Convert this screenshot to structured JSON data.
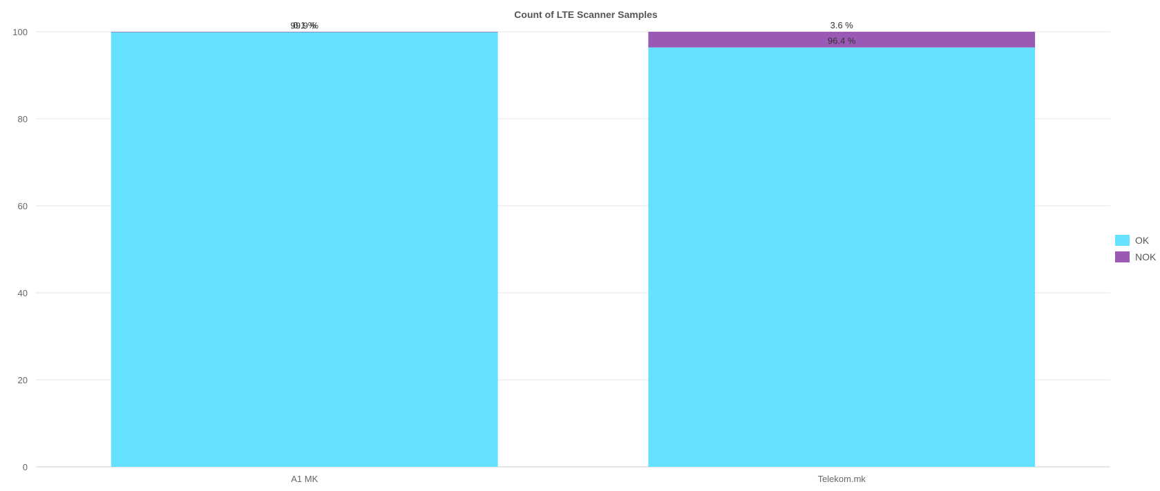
{
  "chart_data": {
    "type": "bar",
    "stacked": true,
    "title": "Count of LTE Scanner Samples",
    "xlabel": "",
    "ylabel": "",
    "categories": [
      "A1 MK",
      "Telekom.mk"
    ],
    "series": [
      {
        "name": "OK",
        "color": "#66e0ff",
        "values": [
          99.9,
          96.4
        ],
        "labels": [
          "99.9 %",
          "96.4 %"
        ]
      },
      {
        "name": "NOK",
        "color": "#9b59b6",
        "values": [
          0.1,
          3.6
        ],
        "labels": [
          "0.1 %",
          "3.6 %"
        ]
      }
    ],
    "ylim": [
      0,
      100
    ],
    "yticks": [
      "0",
      "20",
      "40",
      "60",
      "80",
      "100"
    ],
    "grid": true,
    "legend_position": "right"
  }
}
